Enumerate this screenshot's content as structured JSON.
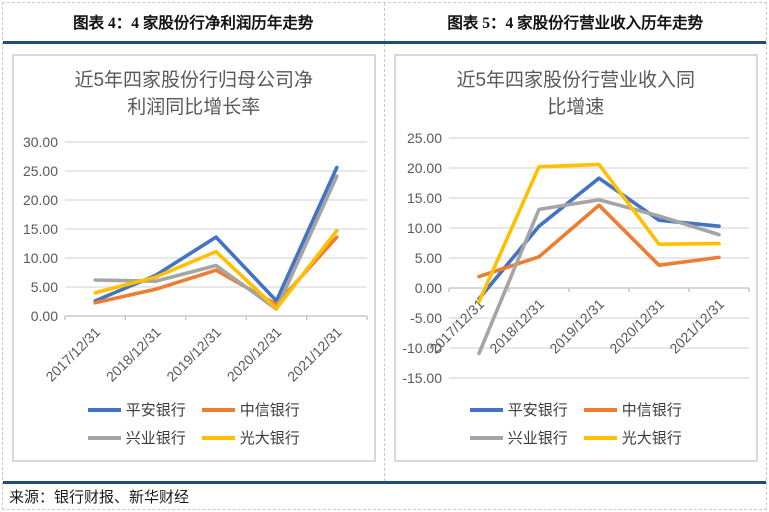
{
  "figures": [
    {
      "header": "图表 4：4 家股份行净利润历年走势"
    },
    {
      "header": "图表 5：4 家股份行营业收入历年走势"
    }
  ],
  "footer": {
    "source": "来源：银行财报、新华财经"
  },
  "colors": {
    "accent_navy": "#1f4e79",
    "grid_line": "#d9d9d9",
    "axis_line": "#bfbfbf",
    "tick_text": "#595959",
    "chart_border": "#d9d9d9",
    "table_dash": "#c9c9c9"
  },
  "chart_data": [
    {
      "type": "line",
      "title": "近5年四家股份行归母公司净利润同比增长率",
      "categories": [
        "2017/12/31",
        "2018/12/31",
        "2019/12/31",
        "2020/12/31",
        "2021/12/31"
      ],
      "series": [
        {
          "key": "pingan-bank",
          "name": "平安银行",
          "color": "#4472C4",
          "values": [
            2.6,
            7.0,
            13.6,
            2.6,
            25.6
          ]
        },
        {
          "key": "citic-bank",
          "name": "中信银行",
          "color": "#ED7D31",
          "values": [
            2.3,
            4.6,
            7.9,
            2.0,
            13.6
          ]
        },
        {
          "key": "cib-bank",
          "name": "兴业银行",
          "color": "#A5A5A5",
          "values": [
            6.2,
            6.0,
            8.7,
            1.2,
            24.1
          ]
        },
        {
          "key": "ceb-bank",
          "name": "光大银行",
          "color": "#FFC000",
          "values": [
            4.0,
            6.7,
            11.1,
            1.3,
            14.7
          ]
        }
      ],
      "ylim": [
        0,
        30
      ],
      "ystep": 5,
      "tick_format": "0.00",
      "grid": true,
      "legend_position": "bottom"
    },
    {
      "type": "line",
      "title": "近5年四家股份行营业收入同比增速",
      "categories": [
        "2017/12/31",
        "2018/12/31",
        "2019/12/31",
        "2020/12/31",
        "2021/12/31"
      ],
      "series": [
        {
          "key": "pingan-bank",
          "name": "平安银行",
          "color": "#4472C4",
          "values": [
            -1.8,
            10.3,
            18.3,
            11.3,
            10.3
          ]
        },
        {
          "key": "citic-bank",
          "name": "中信银行",
          "color": "#ED7D31",
          "values": [
            1.9,
            5.2,
            13.8,
            3.8,
            5.1
          ]
        },
        {
          "key": "cib-bank",
          "name": "兴业银行",
          "color": "#A5A5A5",
          "values": [
            -10.9,
            13.1,
            14.7,
            12.0,
            8.9
          ]
        },
        {
          "key": "ceb-bank",
          "name": "光大银行",
          "color": "#FFC000",
          "values": [
            -2.3,
            20.2,
            20.6,
            7.3,
            7.4
          ]
        }
      ],
      "ylim": [
        -15,
        25
      ],
      "ystep": 5,
      "tick_format": "0.00",
      "grid": true,
      "legend_position": "bottom"
    }
  ]
}
